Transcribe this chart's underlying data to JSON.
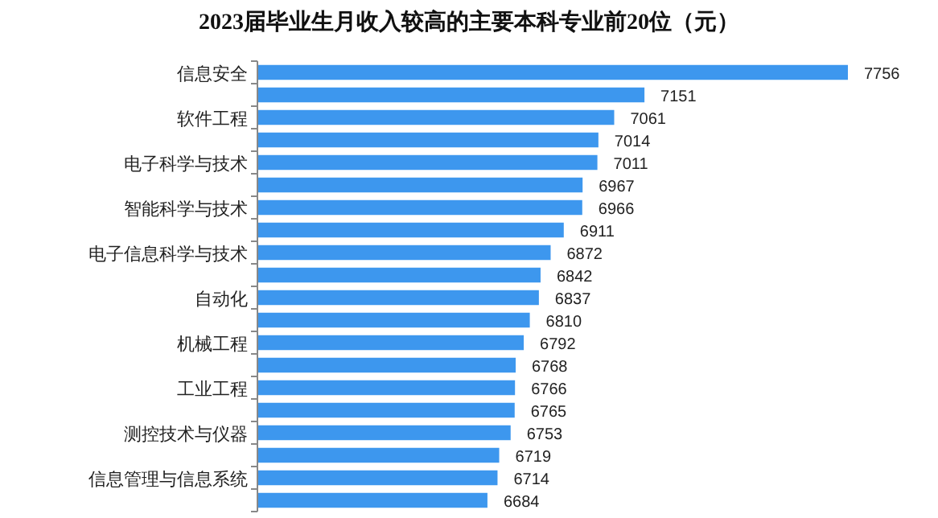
{
  "chart_data": {
    "type": "bar",
    "orientation": "horizontal",
    "title": "2023届毕业生月收入较高的主要本科专业前20位（元）",
    "categories": [
      "信息安全",
      null,
      "软件工程",
      null,
      "电子科学与技术",
      null,
      "智能科学与技术",
      null,
      "电子信息科学与技术",
      null,
      "自动化",
      null,
      "机械工程",
      null,
      "工业工程",
      null,
      "测控技术与仪器",
      null,
      "信息管理与信息系统",
      null
    ],
    "values": [
      7756,
      7151,
      7061,
      7014,
      7011,
      6967,
      6966,
      6911,
      6872,
      6842,
      6837,
      6810,
      6792,
      6768,
      6766,
      6765,
      6753,
      6719,
      6714,
      6684
    ],
    "color": "#3d97ee",
    "xlim": [
      6000,
      7756
    ],
    "data_labels": true,
    "tick_labels": "y"
  }
}
